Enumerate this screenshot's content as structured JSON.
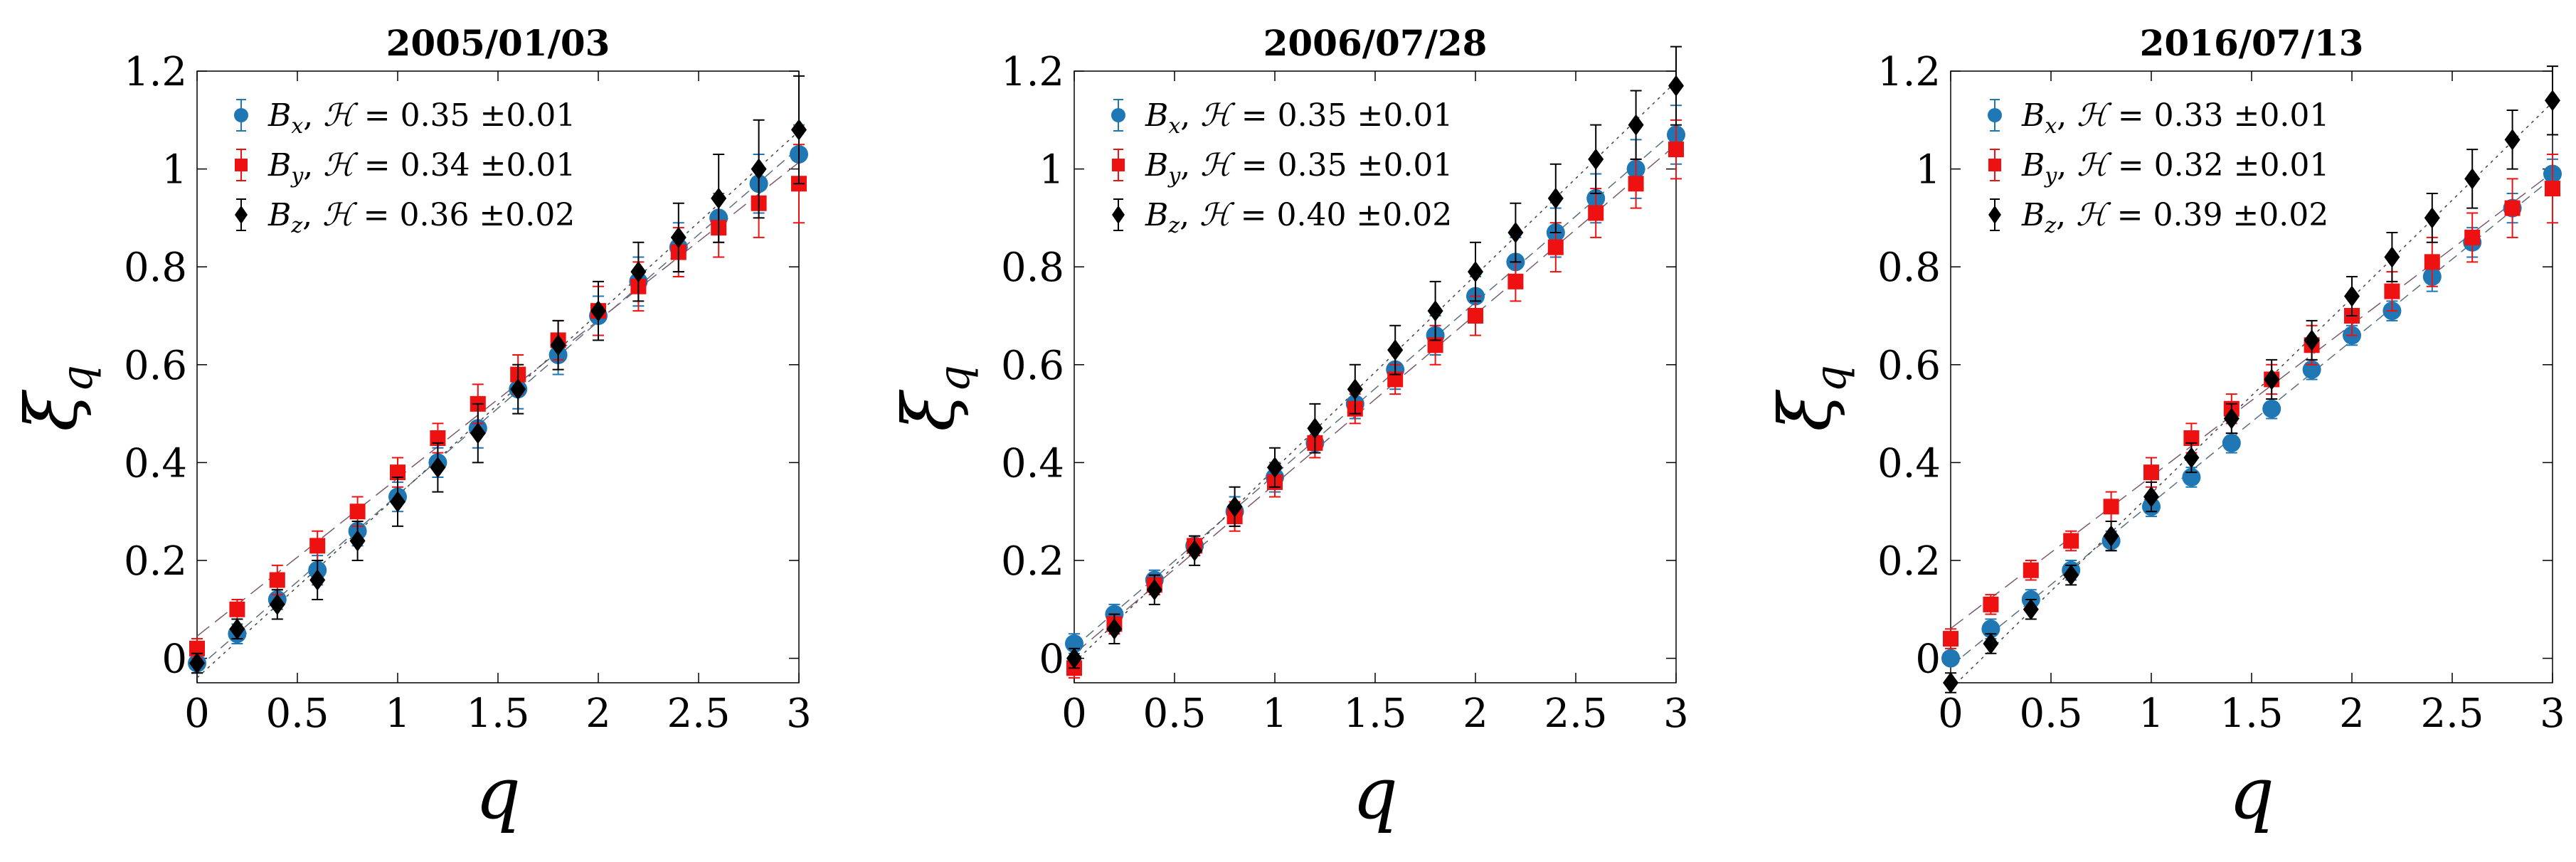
{
  "figure": {
    "ylabel_symbol": "ξ",
    "ylabel_subscript": "q",
    "xlabel": "q"
  },
  "chart_data": [
    {
      "type": "scatter",
      "title": "2005/01/03",
      "xlabel": "q",
      "ylabel": "ξ_q",
      "xlim": [
        0,
        3
      ],
      "ylim": [
        -0.05,
        1.2
      ],
      "x_ticks": [
        0,
        0.5,
        1,
        1.5,
        2,
        2.5,
        3
      ],
      "x_tick_labels": [
        "0",
        "0.5",
        "1",
        "1.5",
        "2",
        "2.5",
        "3"
      ],
      "y_ticks": [
        0,
        0.2,
        0.4,
        0.6,
        0.8,
        1,
        1.2
      ],
      "y_tick_labels": [
        "0",
        "0.2",
        "0.4",
        "0.6",
        "0.8",
        "1",
        "1.2"
      ],
      "legend_position": "top-left",
      "x": [
        0,
        0.2,
        0.4,
        0.6,
        0.8,
        1.0,
        1.2,
        1.4,
        1.6,
        1.8,
        2.0,
        2.2,
        2.4,
        2.6,
        2.8,
        3.0
      ],
      "series": [
        {
          "name": "Bx",
          "component": "x",
          "H_value": "0.35",
          "H_err": "0.01",
          "color": "#1f77b4",
          "marker": "circle",
          "values": [
            -0.01,
            0.05,
            0.12,
            0.18,
            0.26,
            0.33,
            0.4,
            0.47,
            0.55,
            0.62,
            0.7,
            0.77,
            0.84,
            0.9,
            0.97,
            1.03
          ],
          "errors": [
            0.02,
            0.02,
            0.02,
            0.03,
            0.03,
            0.03,
            0.03,
            0.04,
            0.04,
            0.04,
            0.04,
            0.05,
            0.05,
            0.05,
            0.06,
            0.06
          ]
        },
        {
          "name": "By",
          "component": "y",
          "H_value": "0.34",
          "H_err": "0.01",
          "color": "#ee1111",
          "marker": "square",
          "values": [
            0.02,
            0.1,
            0.16,
            0.23,
            0.3,
            0.38,
            0.45,
            0.52,
            0.58,
            0.65,
            0.71,
            0.76,
            0.83,
            0.88,
            0.93,
            0.97
          ],
          "errors": [
            0.02,
            0.02,
            0.03,
            0.03,
            0.03,
            0.03,
            0.03,
            0.04,
            0.04,
            0.04,
            0.05,
            0.05,
            0.05,
            0.06,
            0.07,
            0.08
          ]
        },
        {
          "name": "Bz",
          "component": "z",
          "H_value": "0.36",
          "H_err": "0.02",
          "color": "#000000",
          "marker": "diamond",
          "values": [
            -0.01,
            0.06,
            0.11,
            0.16,
            0.24,
            0.32,
            0.39,
            0.46,
            0.55,
            0.64,
            0.71,
            0.79,
            0.86,
            0.94,
            1.0,
            1.08
          ],
          "errors": [
            0.02,
            0.02,
            0.03,
            0.04,
            0.04,
            0.05,
            0.05,
            0.06,
            0.05,
            0.05,
            0.06,
            0.06,
            0.07,
            0.09,
            0.1,
            0.11
          ]
        }
      ]
    },
    {
      "type": "scatter",
      "title": "2006/07/28",
      "xlabel": "q",
      "ylabel": "ξ_q",
      "xlim": [
        0,
        3
      ],
      "ylim": [
        -0.05,
        1.2
      ],
      "x_ticks": [
        0,
        0.5,
        1,
        1.5,
        2,
        2.5,
        3
      ],
      "x_tick_labels": [
        "0",
        "0.5",
        "1",
        "1.5",
        "2",
        "2.5",
        "3"
      ],
      "y_ticks": [
        0,
        0.2,
        0.4,
        0.6,
        0.8,
        1,
        1.2
      ],
      "y_tick_labels": [
        "0",
        "0.2",
        "0.4",
        "0.6",
        "0.8",
        "1",
        "1.2"
      ],
      "legend_position": "top-left",
      "x": [
        0,
        0.2,
        0.4,
        0.6,
        0.8,
        1.0,
        1.2,
        1.4,
        1.6,
        1.8,
        2.0,
        2.2,
        2.4,
        2.6,
        2.8,
        3.0
      ],
      "series": [
        {
          "name": "Bx",
          "component": "x",
          "H_value": "0.35",
          "H_err": "0.01",
          "color": "#1f77b4",
          "marker": "circle",
          "values": [
            0.03,
            0.09,
            0.16,
            0.23,
            0.3,
            0.37,
            0.44,
            0.52,
            0.59,
            0.66,
            0.74,
            0.81,
            0.87,
            0.94,
            1.0,
            1.07
          ],
          "errors": [
            0.02,
            0.02,
            0.02,
            0.02,
            0.03,
            0.03,
            0.03,
            0.03,
            0.04,
            0.04,
            0.04,
            0.05,
            0.05,
            0.05,
            0.06,
            0.06
          ]
        },
        {
          "name": "By",
          "component": "y",
          "H_value": "0.35",
          "H_err": "0.01",
          "color": "#ee1111",
          "marker": "square",
          "values": [
            -0.02,
            0.07,
            0.15,
            0.23,
            0.29,
            0.36,
            0.44,
            0.51,
            0.57,
            0.64,
            0.7,
            0.77,
            0.84,
            0.91,
            0.97,
            1.04
          ],
          "errors": [
            0.02,
            0.02,
            0.02,
            0.02,
            0.03,
            0.03,
            0.03,
            0.03,
            0.03,
            0.04,
            0.04,
            0.04,
            0.05,
            0.05,
            0.05,
            0.06
          ]
        },
        {
          "name": "Bz",
          "component": "z",
          "H_value": "0.40",
          "H_err": "0.02",
          "color": "#000000",
          "marker": "diamond",
          "values": [
            0.0,
            0.06,
            0.14,
            0.22,
            0.31,
            0.39,
            0.47,
            0.55,
            0.63,
            0.71,
            0.79,
            0.87,
            0.94,
            1.02,
            1.09,
            1.17
          ],
          "errors": [
            0.02,
            0.03,
            0.03,
            0.03,
            0.04,
            0.04,
            0.05,
            0.05,
            0.05,
            0.06,
            0.06,
            0.06,
            0.07,
            0.07,
            0.07,
            0.08
          ]
        }
      ]
    },
    {
      "type": "scatter",
      "title": "2016/07/13",
      "xlabel": "q",
      "ylabel": "ξ_q",
      "xlim": [
        0,
        3
      ],
      "ylim": [
        -0.05,
        1.2
      ],
      "x_ticks": [
        0,
        0.5,
        1,
        1.5,
        2,
        2.5,
        3
      ],
      "x_tick_labels": [
        "0",
        "0.5",
        "1",
        "1.5",
        "2",
        "2.5",
        "3"
      ],
      "y_ticks": [
        0,
        0.2,
        0.4,
        0.6,
        0.8,
        1,
        1.2
      ],
      "y_tick_labels": [
        "0",
        "0.2",
        "0.4",
        "0.6",
        "0.8",
        "1",
        "1.2"
      ],
      "legend_position": "top-left",
      "x": [
        0,
        0.2,
        0.4,
        0.6,
        0.8,
        1.0,
        1.2,
        1.4,
        1.6,
        1.8,
        2.0,
        2.2,
        2.4,
        2.6,
        2.8,
        3.0
      ],
      "series": [
        {
          "name": "Bx",
          "component": "x",
          "H_value": "0.33",
          "H_err": "0.01",
          "color": "#1f77b4",
          "marker": "circle",
          "values": [
            0.0,
            0.06,
            0.12,
            0.18,
            0.24,
            0.31,
            0.37,
            0.44,
            0.51,
            0.59,
            0.66,
            0.71,
            0.78,
            0.85,
            0.92,
            0.99
          ],
          "errors": [
            0.01,
            0.02,
            0.02,
            0.02,
            0.02,
            0.02,
            0.02,
            0.02,
            0.02,
            0.02,
            0.02,
            0.02,
            0.03,
            0.03,
            0.03,
            0.03
          ]
        },
        {
          "name": "By",
          "component": "y",
          "H_value": "0.32",
          "H_err": "0.01",
          "color": "#ee1111",
          "marker": "square",
          "values": [
            0.04,
            0.11,
            0.18,
            0.24,
            0.31,
            0.38,
            0.45,
            0.51,
            0.57,
            0.64,
            0.7,
            0.75,
            0.81,
            0.86,
            0.92,
            0.96
          ],
          "errors": [
            0.02,
            0.02,
            0.02,
            0.02,
            0.03,
            0.03,
            0.03,
            0.03,
            0.03,
            0.04,
            0.04,
            0.04,
            0.05,
            0.05,
            0.06,
            0.07
          ]
        },
        {
          "name": "Bz",
          "component": "z",
          "H_value": "0.39",
          "H_err": "0.02",
          "color": "#000000",
          "marker": "diamond",
          "values": [
            -0.05,
            0.03,
            0.1,
            0.17,
            0.25,
            0.33,
            0.41,
            0.49,
            0.57,
            0.65,
            0.74,
            0.82,
            0.9,
            0.98,
            1.06,
            1.14
          ],
          "errors": [
            0.02,
            0.02,
            0.02,
            0.02,
            0.03,
            0.03,
            0.03,
            0.03,
            0.04,
            0.04,
            0.04,
            0.05,
            0.05,
            0.06,
            0.06,
            0.07
          ]
        }
      ]
    }
  ]
}
